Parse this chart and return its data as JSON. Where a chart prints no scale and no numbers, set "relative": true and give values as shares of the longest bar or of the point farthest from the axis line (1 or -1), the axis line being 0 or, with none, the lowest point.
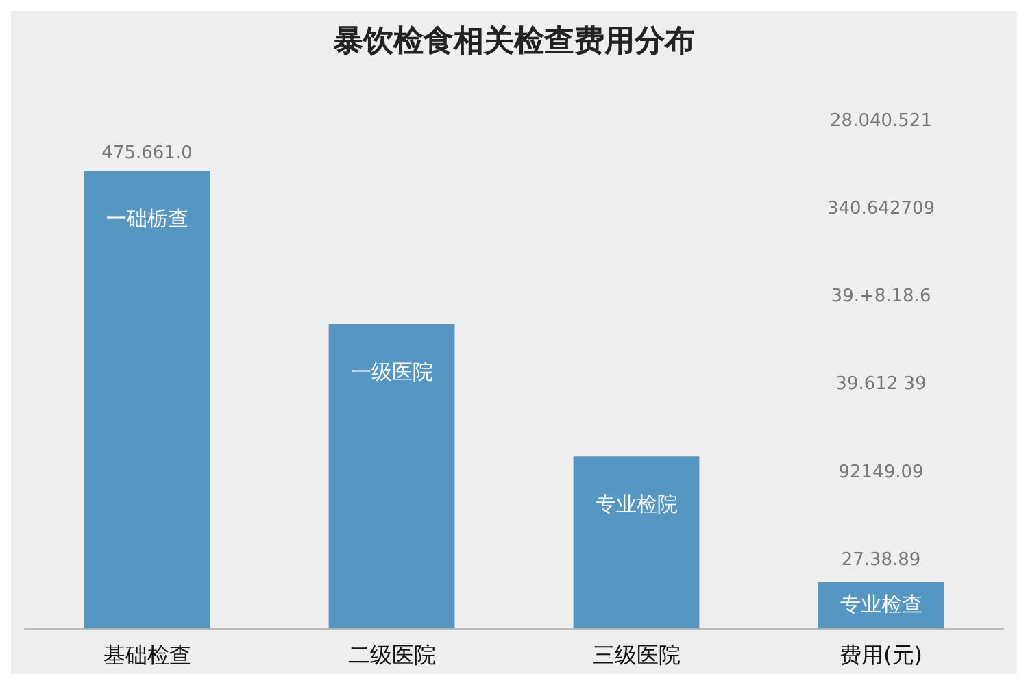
{
  "chart_data": {
    "type": "bar",
    "title": "暴饮检食相关检查费用分布",
    "relative": true,
    "categories": [
      "基础检查",
      "二级医院",
      "三级医院",
      "费用(元)"
    ],
    "values": [
      1,
      0.665,
      0.376,
      0.101
    ],
    "color": "#5596c3",
    "annotations": [
      {
        "text": "一础栃查",
        "x": "基础检查",
        "y": 1
      },
      {
        "text": "一级医院",
        "x": "二级医院",
        "y": 0.665
      },
      {
        "text": "专业检院",
        "x": "三级医院",
        "y": 0.376
      },
      {
        "text": "专业检查",
        "x": "费用(元)",
        "y": 0.101
      },
      {
        "text": "475.661.0",
        "x": "基础检查",
        "y": 1
      },
      "28.040.521",
      "340.642709",
      "39.+8.18.6",
      "39.612 39",
      "92149.09",
      "27.38.89"
    ]
  }
}
